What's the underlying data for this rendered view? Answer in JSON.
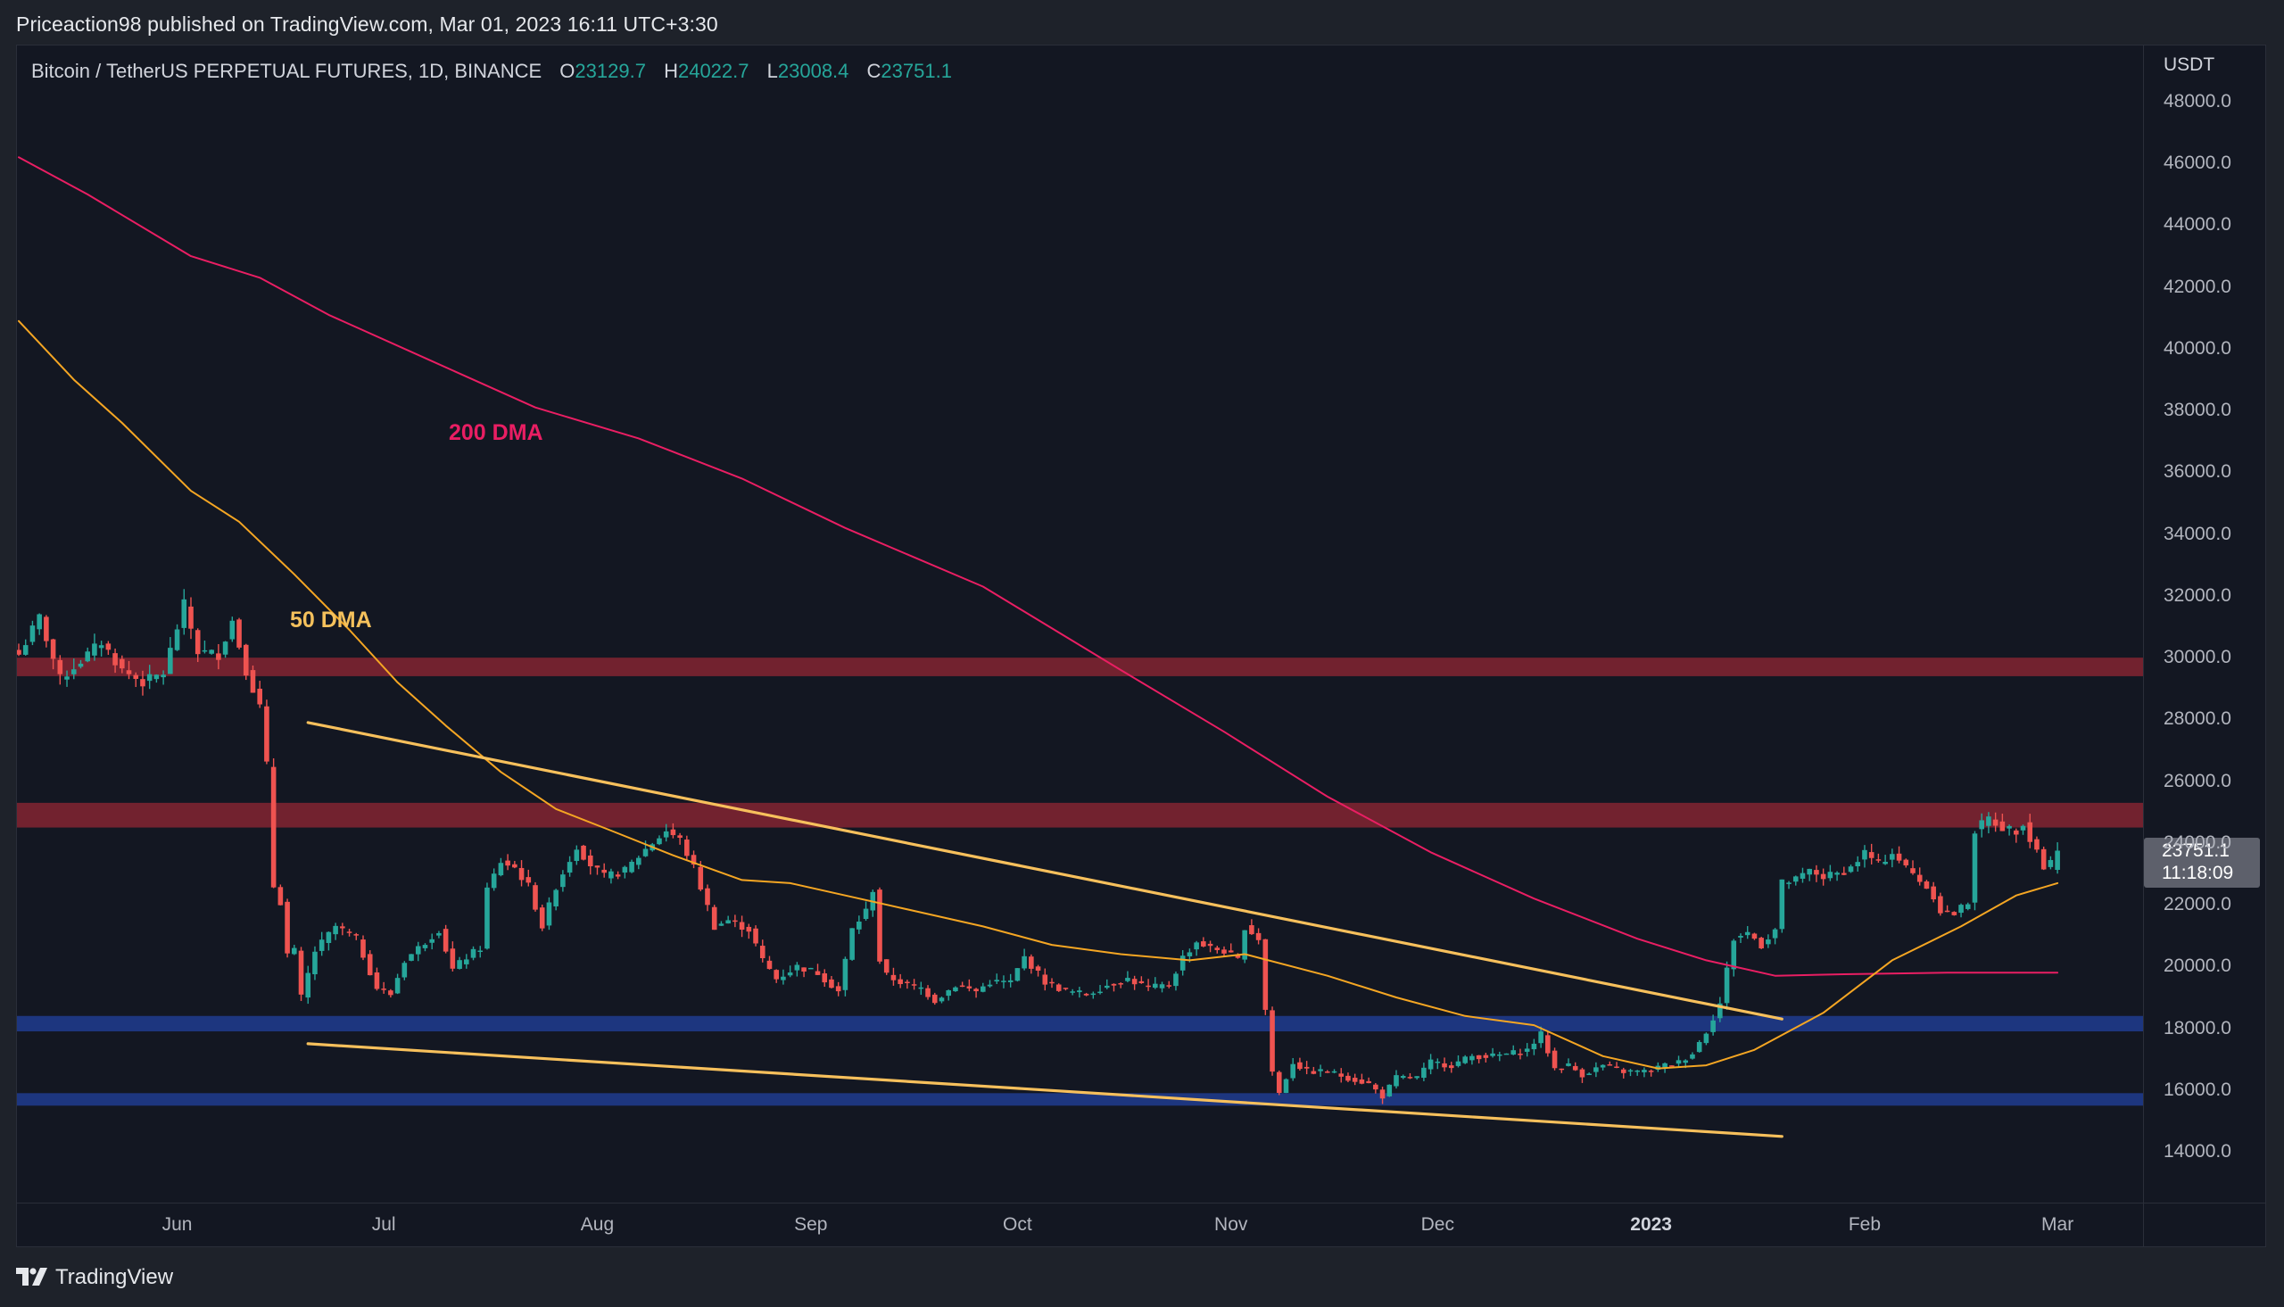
{
  "header": {
    "publish_line": "Priceaction98 published on TradingView.com, Mar 01, 2023 16:11 UTC+3:30"
  },
  "legend": {
    "symbol": "Bitcoin / TetherUS PERPETUAL FUTURES, 1D, BINANCE",
    "open_key": "O",
    "open": "23129.7",
    "high_key": "H",
    "high": "24022.7",
    "low_key": "L",
    "low": "23008.4",
    "close_key": "C",
    "close": "23751.1"
  },
  "price_axis": {
    "unit": "USDT",
    "ticks": [
      "48000.0",
      "46000.0",
      "44000.0",
      "42000.0",
      "40000.0",
      "38000.0",
      "36000.0",
      "34000.0",
      "32000.0",
      "30000.0",
      "28000.0",
      "26000.0",
      "24000.0",
      "22000.0",
      "20000.0",
      "18000.0",
      "16000.0",
      "14000.0"
    ],
    "current_price": "23751.1",
    "countdown": "11:18:09"
  },
  "time_axis": {
    "labels": [
      {
        "text": "Jun",
        "day": 23,
        "bold": false
      },
      {
        "text": "Jul",
        "day": 53,
        "bold": false
      },
      {
        "text": "Aug",
        "day": 84,
        "bold": false
      },
      {
        "text": "Sep",
        "day": 115,
        "bold": false
      },
      {
        "text": "Oct",
        "day": 145,
        "bold": false
      },
      {
        "text": "Nov",
        "day": 176,
        "bold": false
      },
      {
        "text": "Dec",
        "day": 206,
        "bold": false
      },
      {
        "text": "2023",
        "day": 237,
        "bold": true
      },
      {
        "text": "Feb",
        "day": 268,
        "bold": false
      },
      {
        "text": "Mar",
        "day": 296,
        "bold": false
      }
    ]
  },
  "annotations": {
    "ma200_label": "200 DMA",
    "ma50_label": "50 DMA"
  },
  "footer": {
    "brand": "TradingView"
  },
  "colors": {
    "background": "#131722",
    "up": "#26a69a",
    "down": "#ef5350",
    "ma200": "#e91e63",
    "ma50": "#f5a623",
    "trendline": "#f7c05c",
    "resistance_zone": "#7b2431",
    "support_zone": "#1f3a8a"
  },
  "chart_data": {
    "type": "candlestick",
    "title": "Bitcoin / TetherUS PERPETUAL FUTURES, 1D, BINANCE",
    "xlabel": "",
    "ylabel": "USDT",
    "ylim": [
      12600,
      49600
    ],
    "x_range": [
      "2022-05-09",
      "2023-03-01"
    ],
    "grid": false,
    "last_candle": {
      "open": 23129.7,
      "high": 24022.7,
      "low": 23008.4,
      "close": 23751.1
    },
    "close_anchors": [
      [
        0,
        30100
      ],
      [
        3,
        31300
      ],
      [
        6,
        29300
      ],
      [
        9,
        29900
      ],
      [
        12,
        30500
      ],
      [
        15,
        29600
      ],
      [
        18,
        29200
      ],
      [
        21,
        29500
      ],
      [
        24,
        31700
      ],
      [
        26,
        30200
      ],
      [
        29,
        30100
      ],
      [
        31,
        31200
      ],
      [
        33,
        29600
      ],
      [
        35,
        28400
      ],
      [
        36,
        26500
      ],
      [
        37,
        22600
      ],
      [
        38,
        22100
      ],
      [
        39,
        20400
      ],
      [
        40,
        20500
      ],
      [
        41,
        19000
      ],
      [
        43,
        20500
      ],
      [
        46,
        21300
      ],
      [
        49,
        20900
      ],
      [
        52,
        19300
      ],
      [
        54,
        19100
      ],
      [
        56,
        20200
      ],
      [
        59,
        20800
      ],
      [
        61,
        21200
      ],
      [
        63,
        19900
      ],
      [
        65,
        20300
      ],
      [
        67,
        20600
      ],
      [
        68,
        22500
      ],
      [
        70,
        23400
      ],
      [
        72,
        23200
      ],
      [
        74,
        22600
      ],
      [
        76,
        21300
      ],
      [
        78,
        22600
      ],
      [
        81,
        23900
      ],
      [
        83,
        23300
      ],
      [
        85,
        22900
      ],
      [
        88,
        23100
      ],
      [
        91,
        23800
      ],
      [
        94,
        24400
      ],
      [
        96,
        24100
      ],
      [
        98,
        23200
      ],
      [
        101,
        21300
      ],
      [
        103,
        21500
      ],
      [
        106,
        21200
      ],
      [
        108,
        20200
      ],
      [
        110,
        19600
      ],
      [
        113,
        20000
      ],
      [
        116,
        19800
      ],
      [
        119,
        19200
      ],
      [
        121,
        21200
      ],
      [
        123,
        21800
      ],
      [
        124,
        22500
      ],
      [
        125,
        20200
      ],
      [
        126,
        19700
      ],
      [
        129,
        19400
      ],
      [
        131,
        19300
      ],
      [
        133,
        18900
      ],
      [
        136,
        19400
      ],
      [
        139,
        19200
      ],
      [
        141,
        19500
      ],
      [
        144,
        19500
      ],
      [
        146,
        20300
      ],
      [
        149,
        19500
      ],
      [
        152,
        19200
      ],
      [
        155,
        19100
      ],
      [
        158,
        19400
      ],
      [
        161,
        19600
      ],
      [
        164,
        19300
      ],
      [
        167,
        19400
      ],
      [
        169,
        20300
      ],
      [
        171,
        20800
      ],
      [
        173,
        20600
      ],
      [
        175,
        20500
      ],
      [
        177,
        20200
      ],
      [
        178,
        21300
      ],
      [
        180,
        20900
      ],
      [
        181,
        18600
      ],
      [
        182,
        16600
      ],
      [
        183,
        15900
      ],
      [
        185,
        16900
      ],
      [
        187,
        16600
      ],
      [
        190,
        16600
      ],
      [
        193,
        16400
      ],
      [
        196,
        16200
      ],
      [
        198,
        15800
      ],
      [
        200,
        16400
      ],
      [
        203,
        16400
      ],
      [
        205,
        16900
      ],
      [
        208,
        16800
      ],
      [
        211,
        17100
      ],
      [
        214,
        17100
      ],
      [
        217,
        17200
      ],
      [
        219,
        17300
      ],
      [
        221,
        17800
      ],
      [
        223,
        16700
      ],
      [
        225,
        16800
      ],
      [
        227,
        16500
      ],
      [
        230,
        16800
      ],
      [
        233,
        16600
      ],
      [
        236,
        16600
      ],
      [
        239,
        16800
      ],
      [
        241,
        16900
      ],
      [
        243,
        17200
      ],
      [
        245,
        17900
      ],
      [
        247,
        18800
      ],
      [
        248,
        19900
      ],
      [
        249,
        20900
      ],
      [
        251,
        21100
      ],
      [
        253,
        20700
      ],
      [
        255,
        21200
      ],
      [
        256,
        22700
      ],
      [
        258,
        22800
      ],
      [
        260,
        23100
      ],
      [
        262,
        22900
      ],
      [
        264,
        23000
      ],
      [
        266,
        23200
      ],
      [
        268,
        23700
      ],
      [
        270,
        23300
      ],
      [
        272,
        23700
      ],
      [
        274,
        23200
      ],
      [
        276,
        22800
      ],
      [
        278,
        22300
      ],
      [
        279,
        21800
      ],
      [
        281,
        21700
      ],
      [
        283,
        22100
      ],
      [
        284,
        24400
      ],
      [
        286,
        24800
      ],
      [
        288,
        24500
      ],
      [
        290,
        24400
      ],
      [
        291,
        24700
      ],
      [
        292,
        24100
      ],
      [
        293,
        23800
      ],
      [
        294,
        23200
      ],
      [
        295,
        23400
      ],
      [
        296,
        23751
      ]
    ],
    "series": [
      {
        "name": "200 DMA",
        "type": "line",
        "color": "#e91e63",
        "points": [
          [
            0,
            46200
          ],
          [
            10,
            45000
          ],
          [
            25,
            43000
          ],
          [
            35,
            42300
          ],
          [
            45,
            41100
          ],
          [
            60,
            39600
          ],
          [
            75,
            38100
          ],
          [
            90,
            37100
          ],
          [
            105,
            35800
          ],
          [
            120,
            34200
          ],
          [
            140,
            32300
          ],
          [
            160,
            29600
          ],
          [
            175,
            27600
          ],
          [
            190,
            25500
          ],
          [
            205,
            23700
          ],
          [
            220,
            22200
          ],
          [
            235,
            20900
          ],
          [
            245,
            20200
          ],
          [
            255,
            19700
          ],
          [
            265,
            19750
          ],
          [
            280,
            19800
          ],
          [
            296,
            19800
          ]
        ]
      },
      {
        "name": "50 DMA",
        "type": "line",
        "color": "#f5a623",
        "points": [
          [
            0,
            40900
          ],
          [
            8,
            39000
          ],
          [
            15,
            37600
          ],
          [
            25,
            35400
          ],
          [
            32,
            34400
          ],
          [
            40,
            32700
          ],
          [
            48,
            30900
          ],
          [
            55,
            29200
          ],
          [
            62,
            27800
          ],
          [
            70,
            26300
          ],
          [
            78,
            25100
          ],
          [
            86,
            24400
          ],
          [
            95,
            23600
          ],
          [
            105,
            22800
          ],
          [
            112,
            22700
          ],
          [
            120,
            22300
          ],
          [
            130,
            21800
          ],
          [
            140,
            21300
          ],
          [
            150,
            20700
          ],
          [
            160,
            20400
          ],
          [
            170,
            20200
          ],
          [
            178,
            20400
          ],
          [
            190,
            19700
          ],
          [
            200,
            19000
          ],
          [
            210,
            18400
          ],
          [
            220,
            18100
          ],
          [
            230,
            17100
          ],
          [
            238,
            16700
          ],
          [
            245,
            16800
          ],
          [
            252,
            17300
          ],
          [
            262,
            18500
          ],
          [
            272,
            20200
          ],
          [
            282,
            21300
          ],
          [
            290,
            22300
          ],
          [
            296,
            22700
          ]
        ]
      },
      {
        "name": "Descending resistance trendline",
        "type": "line",
        "color": "#f7c05c",
        "points": [
          [
            42,
            27900
          ],
          [
            256,
            18300
          ]
        ]
      },
      {
        "name": "Descending support trendline",
        "type": "line",
        "color": "#f7c05c",
        "points": [
          [
            42,
            17500
          ],
          [
            256,
            14500
          ]
        ]
      }
    ],
    "zones": [
      {
        "name": "resistance-1",
        "type": "resistance",
        "from": 29400,
        "to": 30000
      },
      {
        "name": "resistance-2",
        "type": "resistance",
        "from": 24500,
        "to": 25300
      },
      {
        "name": "support-1",
        "type": "support",
        "from": 17900,
        "to": 18400
      },
      {
        "name": "support-2",
        "type": "support",
        "from": 15500,
        "to": 15900
      }
    ],
    "legend_position": "top-left"
  }
}
